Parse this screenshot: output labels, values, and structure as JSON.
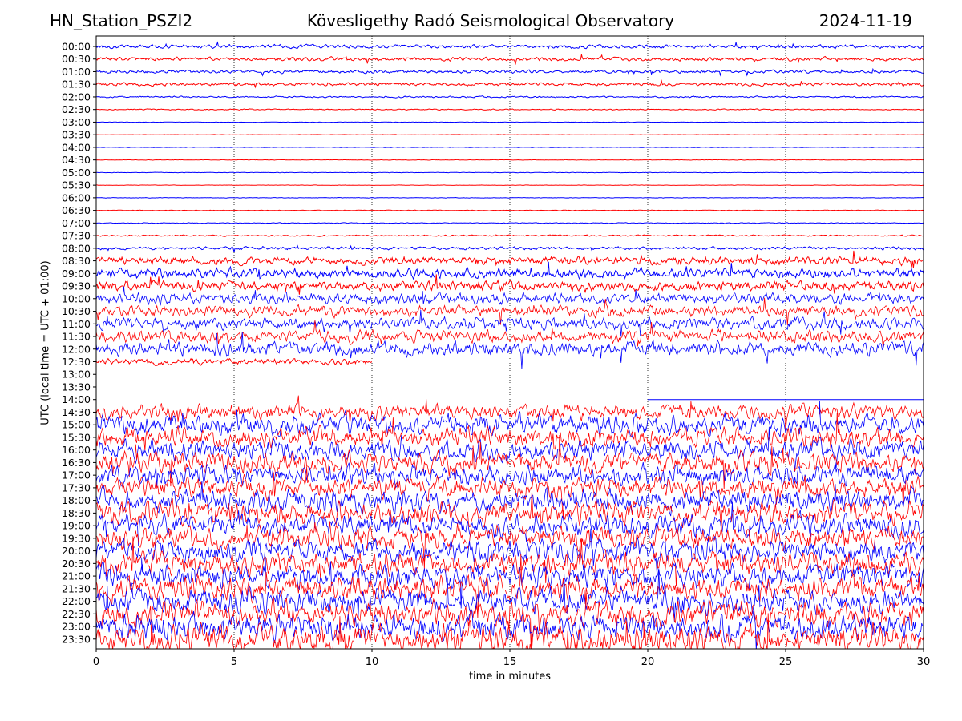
{
  "header": {
    "station": "HN_Station_PSZI2",
    "observatory": "Kövesligethy Radó Seismological Observatory",
    "date": "2024-11-19"
  },
  "chart_data": {
    "type": "line",
    "title": "Kövesligethy Radó Seismological Observatory",
    "xlabel": "time in minutes",
    "ylabel": "UTC (local time = UTC + 01:00)",
    "xlim": [
      0,
      30
    ],
    "x_ticks": [
      "0",
      "5",
      "10",
      "15",
      "20",
      "25",
      "30"
    ],
    "grid": "vertical dotted lines at 5-minute intervals",
    "series_colors": [
      "#0000ff",
      "#ff0000"
    ],
    "row_labels": [
      "00:00",
      "00:30",
      "01:00",
      "01:30",
      "02:00",
      "02:30",
      "03:00",
      "03:30",
      "04:00",
      "04:30",
      "05:00",
      "05:30",
      "06:00",
      "06:30",
      "07:00",
      "07:30",
      "08:00",
      "08:30",
      "09:00",
      "09:30",
      "10:00",
      "10:30",
      "11:00",
      "11:30",
      "12:00",
      "12:30",
      "13:00",
      "13:30",
      "14:00",
      "14:30",
      "15:00",
      "15:30",
      "16:00",
      "16:30",
      "17:00",
      "17:30",
      "18:00",
      "18:30",
      "19:00",
      "19:30",
      "20:00",
      "20:30",
      "21:00",
      "21:30",
      "22:00",
      "22:30",
      "23:00",
      "23:30"
    ],
    "row_amplitude_relative": [
      0.35,
      0.35,
      0.3,
      0.3,
      0.15,
      0.1,
      0.04,
      0.04,
      0.05,
      0.05,
      0.05,
      0.04,
      0.05,
      0.06,
      0.07,
      0.15,
      0.3,
      0.8,
      1.0,
      1.0,
      1.1,
      1.1,
      1.2,
      1.2,
      1.4,
      0.6,
      0,
      0,
      0,
      1.5,
      2.0,
      2.0,
      2.0,
      2.0,
      2.0,
      2.0,
      2.2,
      2.2,
      2.2,
      2.2,
      2.3,
      2.3,
      2.3,
      2.4,
      2.4,
      2.5,
      2.6,
      2.8
    ],
    "note_gap": "no signal between 12:40 and 14:20"
  }
}
